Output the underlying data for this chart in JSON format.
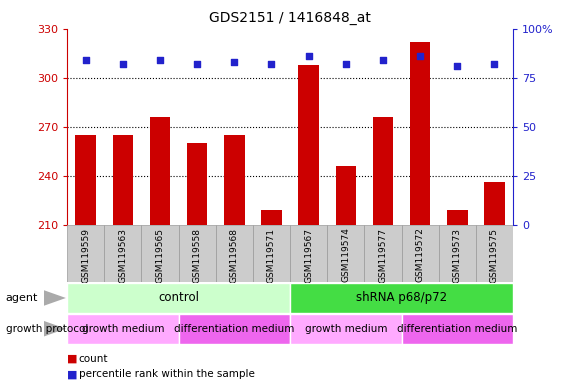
{
  "title": "GDS2151 / 1416848_at",
  "samples": [
    "GSM119559",
    "GSM119563",
    "GSM119565",
    "GSM119558",
    "GSM119568",
    "GSM119571",
    "GSM119567",
    "GSM119574",
    "GSM119577",
    "GSM119572",
    "GSM119573",
    "GSM119575"
  ],
  "counts": [
    265,
    265,
    276,
    260,
    265,
    219,
    308,
    246,
    276,
    322,
    219,
    236
  ],
  "percentiles": [
    84,
    82,
    84,
    82,
    83,
    82,
    86,
    82,
    84,
    86,
    81,
    82
  ],
  "ymin": 210,
  "ymax": 330,
  "yticks": [
    210,
    240,
    270,
    300,
    330
  ],
  "right_yticks": [
    0,
    25,
    50,
    75,
    100
  ],
  "right_yticklabels": [
    "0",
    "25",
    "50",
    "75",
    "100%"
  ],
  "bar_color": "#cc0000",
  "dot_color": "#2222cc",
  "agent_groups": [
    {
      "label": "control",
      "start": 0,
      "end": 6,
      "color": "#ccffcc"
    },
    {
      "label": "shRNA p68/p72",
      "start": 6,
      "end": 12,
      "color": "#44dd44"
    }
  ],
  "growth_groups": [
    {
      "label": "growth medium",
      "start": 0,
      "end": 3,
      "color": "#ffaaff"
    },
    {
      "label": "differentiation medium",
      "start": 3,
      "end": 6,
      "color": "#ee66ee"
    },
    {
      "label": "growth medium",
      "start": 6,
      "end": 9,
      "color": "#ffaaff"
    },
    {
      "label": "differentiation medium",
      "start": 9,
      "end": 12,
      "color": "#ee66ee"
    }
  ],
  "legend_items": [
    {
      "label": "count",
      "color": "#cc0000"
    },
    {
      "label": "percentile rank within the sample",
      "color": "#2222cc"
    }
  ],
  "left_yaxis_color": "#cc0000",
  "right_yaxis_color": "#2222cc",
  "bg_color": "#ffffff",
  "xtick_bg": "#cccccc",
  "xtick_border": "#999999"
}
